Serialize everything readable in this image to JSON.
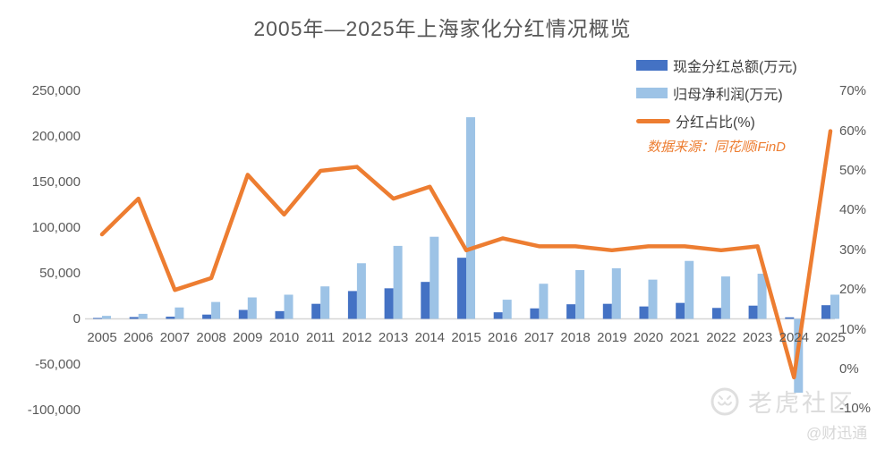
{
  "page": {
    "title": "2005年—2025年上海家化分红情况概览"
  },
  "legend": {
    "items": [
      {
        "label": "现金分红总额(万元)",
        "color": "#4472C4",
        "swatch": "bar"
      },
      {
        "label": "归母净利润(万元)",
        "color": "#9DC3E6",
        "swatch": "bar"
      },
      {
        "label": "分红占比(%)",
        "color": "#ED7D31",
        "swatch": "line"
      }
    ]
  },
  "source_note": "数据来源：同花顺iFinD",
  "watermark": {
    "brand": "老虎社区",
    "handle": "@财迅通",
    "logo": "tiger-circle-logo"
  },
  "chart_data": {
    "type": "combo",
    "title": "2005年—2025年上海家化分红情况概览",
    "grid": false,
    "legend_position": "top-right",
    "categories": [
      "2005",
      "2006",
      "2007",
      "2008",
      "2009",
      "2010",
      "2011",
      "2012",
      "2013",
      "2014",
      "2015",
      "2016",
      "2017",
      "2018",
      "2019",
      "2020",
      "2021",
      "2022",
      "2023",
      "2024",
      "2025"
    ],
    "series": [
      {
        "name": "现金分红总额(万元)",
        "type": "bar",
        "axis": "left",
        "color": "#4472C4",
        "values": [
          1000,
          2000,
          2400,
          4700,
          9800,
          8500,
          16500,
          30500,
          33500,
          40500,
          67000,
          7200,
          11500,
          16000,
          16500,
          13600,
          17500,
          12000,
          14500,
          1700,
          15000
        ]
      },
      {
        "name": "归母净利润(万元)",
        "type": "bar",
        "axis": "left",
        "color": "#9DC3E6",
        "values": [
          3300,
          5500,
          12500,
          18500,
          23500,
          26500,
          35600,
          61000,
          80000,
          90000,
          221000,
          21000,
          38500,
          53500,
          55500,
          43000,
          63500,
          46500,
          49500,
          -81000,
          26500
        ]
      },
      {
        "name": "分红占比(%)",
        "type": "line",
        "axis": "right",
        "color": "#ED7D31",
        "values": [
          34,
          43,
          20,
          23,
          49,
          39,
          50,
          51,
          43,
          46,
          30,
          33,
          31,
          31,
          30,
          31,
          31,
          30,
          31,
          -2,
          60
        ]
      }
    ],
    "left_axis": {
      "unit": "万元",
      "min": -100000,
      "max": 250000,
      "step": 50000,
      "tick_labels": [
        "250,000",
        "200,000",
        "150,000",
        "100,000",
        "50,000",
        "0",
        "-50,000",
        "-100,000"
      ],
      "tick_values": [
        250000,
        200000,
        150000,
        100000,
        50000,
        0,
        -50000,
        -100000
      ]
    },
    "right_axis": {
      "unit": "%",
      "min": -10,
      "max": 70,
      "step": 10,
      "tick_labels": [
        "70%",
        "60%",
        "50%",
        "40%",
        "30%",
        "20%",
        "10%",
        "0%",
        "-10%"
      ],
      "tick_values": [
        70,
        60,
        50,
        40,
        30,
        20,
        10,
        0,
        -10
      ]
    }
  }
}
